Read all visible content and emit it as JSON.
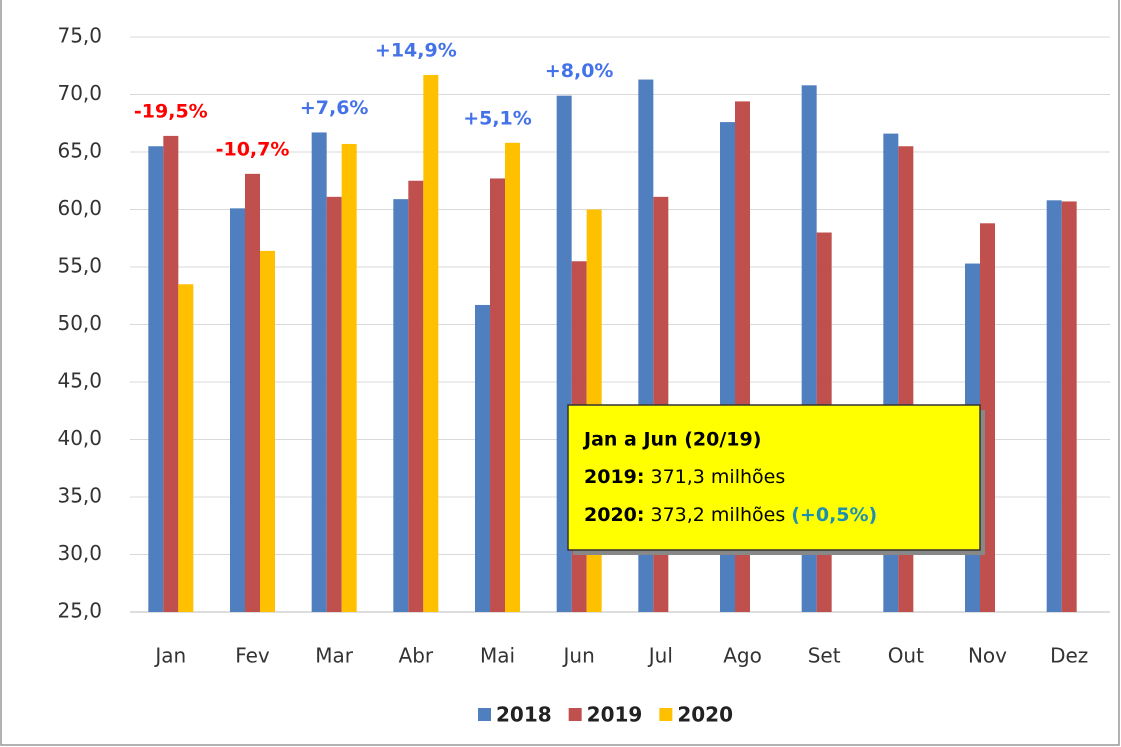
{
  "chart_data": {
    "type": "bar",
    "categories": [
      "Jan",
      "Fev",
      "Mar",
      "Abr",
      "Mai",
      "Jun",
      "Jul",
      "Ago",
      "Set",
      "Out",
      "Nov",
      "Dez"
    ],
    "series": [
      {
        "name": "2018",
        "color": "#4f7fbf",
        "values": [
          65.5,
          60.1,
          66.7,
          60.9,
          51.7,
          69.9,
          71.3,
          67.6,
          70.8,
          66.6,
          55.3,
          60.8
        ]
      },
      {
        "name": "2019",
        "color": "#c0504d",
        "values": [
          66.4,
          63.1,
          61.1,
          62.5,
          62.7,
          55.5,
          61.1,
          69.4,
          58.0,
          65.5,
          58.8,
          60.7
        ]
      },
      {
        "name": "2020",
        "color": "#ffc000",
        "values": [
          53.5,
          56.4,
          65.7,
          71.7,
          65.8,
          60.0,
          null,
          null,
          null,
          null,
          null,
          null
        ]
      }
    ],
    "change_labels": [
      "-19,5%",
      "-10,7%",
      "+7,6%",
      "+14,9%",
      "+5,1%",
      "+8,0%",
      null,
      null,
      null,
      null,
      null,
      null
    ],
    "ylim": [
      25,
      75
    ],
    "yticks": [
      {
        "value": 25,
        "label": "25,0"
      },
      {
        "value": 30,
        "label": "30,0"
      },
      {
        "value": 35,
        "label": "35,0"
      },
      {
        "value": 40,
        "label": "40,0"
      },
      {
        "value": 45,
        "label": "45,0"
      },
      {
        "value": 50,
        "label": "50,0"
      },
      {
        "value": 55,
        "label": "55,0"
      },
      {
        "value": 60,
        "label": "60,0"
      },
      {
        "value": 65,
        "label": "65,0"
      },
      {
        "value": 70,
        "label": "70,0"
      },
      {
        "value": 75,
        "label": "75,0"
      }
    ],
    "grid": true,
    "legend": "bottom",
    "note": {
      "title": "Jan a Jun (20/19)",
      "lines": [
        {
          "label": "2019:",
          "text": "371,3 milhões"
        },
        {
          "label": "2020:",
          "text": "373,2 milhões",
          "change": "(+0,5%)"
        }
      ]
    }
  }
}
